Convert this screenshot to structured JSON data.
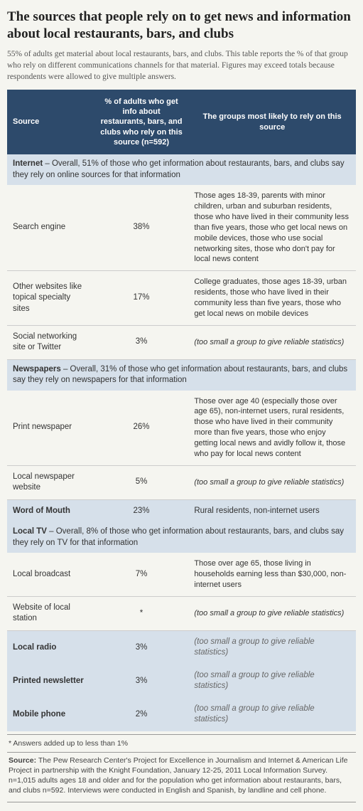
{
  "title": "The sources that people rely on to get news and information about local restaurants, bars, and clubs",
  "subtitle": "55% of adults get material about local restaurants, bars, and clubs. This table reports the % of that group who rely on different communications channels for that material. Figures may exceed totals because respondents were allowed to give multiple answers.",
  "columns": {
    "source": "Source",
    "pct": "% of adults who get info about restaurants, bars, and clubs who rely on this source (n=592)",
    "groups": "The groups most likely to rely on this source"
  },
  "sections": [
    {
      "type": "section",
      "label": "Internet",
      "desc": " – Overall, 51% of those who get information about restaurants, bars, and clubs say they rely on online sources for that information",
      "rows": [
        {
          "source": "Search engine",
          "pct": "38%",
          "groups": "Those ages 18-39, parents with minor children,  urban and suburban residents, those who have lived in their community less than five years, those who get local news on mobile devices, those who use social networking sites, those who don't pay for local news content",
          "italic": false
        },
        {
          "source": "Other websites like topical specialty sites",
          "pct": "17%",
          "groups": "College graduates, those ages 18-39, urban residents, those who have lived in their community less than five years, those who get local news on mobile devices",
          "italic": false
        },
        {
          "source": "Social networking site or Twitter",
          "pct": "3%",
          "groups": "(too small a group to give reliable statistics)",
          "italic": true
        }
      ]
    },
    {
      "type": "section",
      "label": "Newspapers",
      "desc": " – Overall, 31% of those who get information about restaurants, bars, and clubs say they rely on newspapers for that information",
      "rows": [
        {
          "source": "Print newspaper",
          "pct": "26%",
          "groups": "Those over age 40 (especially those over age 65), non-internet users, rural residents, those who have lived in their community more than five years, those who enjoy getting local news and avidly follow it, those who pay for local news content",
          "italic": false
        },
        {
          "source": "Local newspaper website",
          "pct": "5%",
          "groups": "(too small a group to give reliable statistics)",
          "italic": true
        }
      ]
    },
    {
      "type": "standalone",
      "source": "Word of Mouth",
      "pct": "23%",
      "groups": "Rural residents, non-internet users",
      "italic": false
    },
    {
      "type": "section",
      "label": "Local TV",
      "desc": " – Overall, 8% of those who get information about restaurants, bars, and clubs say they rely on TV for that information",
      "rows": [
        {
          "source": "Local broadcast",
          "pct": "7%",
          "groups": "Those over age 65, those living in households earning less than $30,000, non-internet users",
          "italic": false
        },
        {
          "source": "Website of local station",
          "pct": "*",
          "groups": "(too small a group to give reliable statistics)",
          "italic": true
        }
      ]
    },
    {
      "type": "standalone",
      "source": "Local radio",
      "pct": "3%",
      "groups": "(too small a group to give reliable statistics)",
      "italic": true
    },
    {
      "type": "standalone",
      "source": "Printed newsletter",
      "pct": "3%",
      "groups": "(too small a group to give reliable statistics)",
      "italic": true
    },
    {
      "type": "standalone",
      "source": "Mobile phone",
      "pct": "2%",
      "groups": "(too small a group to give reliable statistics)",
      "italic": true
    }
  ],
  "footnote": "*  Answers added up to less than 1%",
  "source_label": "Source:",
  "source_text": " The Pew Research Center's Project for Excellence in Journalism and Internet & American Life Project in partnership with the Knight Foundation, January 12-25, 2011 Local Information Survey. n=1,015 adults ages 18 and older and for the population who get information about restaurants, bars, and clubs n=592. Interviews were conducted in English and Spanish, by landline and cell phone.",
  "colors": {
    "header_bg": "#2d4a6b",
    "section_bg": "#d6e0ea",
    "page_bg": "#f5f5f0",
    "border": "#cccccc"
  }
}
